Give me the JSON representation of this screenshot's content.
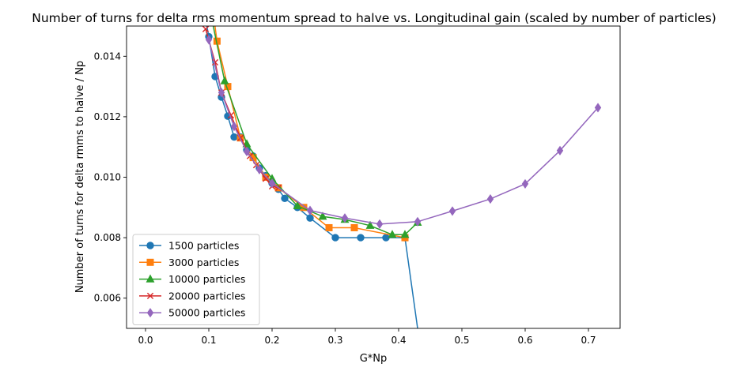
{
  "chart_data": {
    "type": "line",
    "title": "Number of turns for delta rms momentum spread to halve vs. Longitudinal gain (scaled by number of particles)",
    "xlabel": "G*Np",
    "ylabel": "Number of turns for delta rmms to halve / Np",
    "xlim": [
      -0.03,
      0.75
    ],
    "ylim": [
      0.005,
      0.015
    ],
    "xticks": [
      0.0,
      0.1,
      0.2,
      0.3,
      0.4,
      0.5,
      0.6,
      0.7
    ],
    "xtick_labels": [
      "0.0",
      "0.1",
      "0.2",
      "0.3",
      "0.4",
      "0.5",
      "0.6",
      "0.7"
    ],
    "yticks": [
      0.006,
      0.008,
      0.01,
      0.012,
      0.014
    ],
    "ytick_labels": [
      "0.006",
      "0.008",
      "0.010",
      "0.012",
      "0.014"
    ],
    "grid": false,
    "legend_position": "lower-left",
    "series": [
      {
        "name": "1500 particles",
        "color": "#1f77b4",
        "marker": "circle",
        "x": [
          0.09,
          0.1,
          0.11,
          0.12,
          0.13,
          0.14,
          0.15,
          0.16,
          0.17,
          0.18,
          0.19,
          0.2,
          0.21,
          0.22,
          0.24,
          0.26,
          0.3,
          0.34,
          0.38,
          0.41,
          0.44
        ],
        "y": [
          0.0158,
          0.01465,
          0.01333,
          0.01265,
          0.01202,
          0.01133,
          0.01133,
          0.0109,
          0.0107,
          0.0103,
          0.01005,
          0.0098,
          0.0096,
          0.0093,
          0.009,
          0.00865,
          0.008,
          0.008,
          0.008,
          0.008,
          0.0035
        ]
      },
      {
        "name": "3000 particles",
        "color": "#ff7f0e",
        "marker": "square",
        "x": [
          0.1,
          0.113,
          0.13,
          0.15,
          0.17,
          0.19,
          0.21,
          0.25,
          0.29,
          0.33,
          0.41
        ],
        "y": [
          0.0165,
          0.0145,
          0.013,
          0.0113,
          0.01065,
          0.01,
          0.00965,
          0.009,
          0.00833,
          0.00833,
          0.008
        ]
      },
      {
        "name": "10000 particles",
        "color": "#2ca02c",
        "marker": "triangle",
        "x": [
          0.09,
          0.105,
          0.125,
          0.16,
          0.2,
          0.24,
          0.28,
          0.315,
          0.355,
          0.39,
          0.41,
          0.43
        ],
        "y": [
          0.0165,
          0.0152,
          0.01318,
          0.0111,
          0.00995,
          0.00905,
          0.0087,
          0.0086,
          0.0084,
          0.0081,
          0.0081,
          0.0085
        ]
      },
      {
        "name": "20000 particles",
        "color": "#d62728",
        "marker": "x",
        "x": [
          0.095,
          0.11,
          0.12,
          0.135,
          0.15,
          0.165,
          0.175,
          0.19,
          0.2,
          0.21
        ],
        "y": [
          0.0149,
          0.0138,
          0.0128,
          0.01205,
          0.0113,
          0.0107,
          0.0104,
          0.00995,
          0.0097,
          0.00965
        ]
      },
      {
        "name": "50000 particles",
        "color": "#9467bd",
        "marker": "diamond",
        "x": [
          0.1,
          0.12,
          0.14,
          0.16,
          0.18,
          0.2,
          0.26,
          0.315,
          0.37,
          0.43,
          0.485,
          0.545,
          0.6,
          0.655,
          0.715
        ],
        "y": [
          0.01455,
          0.0128,
          0.01168,
          0.01085,
          0.01025,
          0.0098,
          0.0089,
          0.00865,
          0.00845,
          0.00853,
          0.00888,
          0.00928,
          0.00978,
          0.01088,
          0.0123
        ]
      }
    ]
  }
}
